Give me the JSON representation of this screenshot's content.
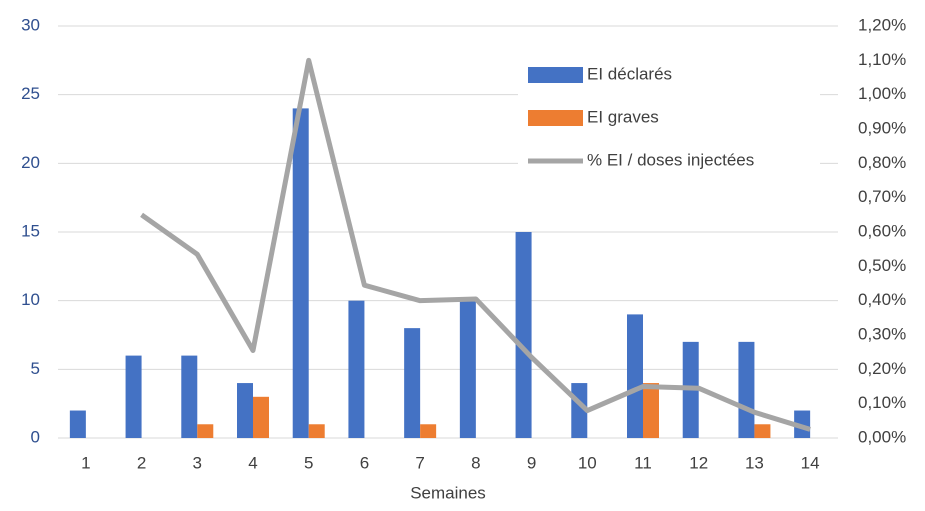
{
  "chart_data": {
    "type": "bar_line",
    "categories": [
      "1",
      "2",
      "3",
      "4",
      "5",
      "6",
      "7",
      "8",
      "9",
      "10",
      "11",
      "12",
      "13",
      "14"
    ],
    "x_label": "Semaines",
    "series": [
      {
        "name": "EI déclarés",
        "color": "#4472c4",
        "type": "bar",
        "values": [
          2,
          6,
          6,
          4,
          24,
          10,
          8,
          10,
          15,
          4,
          9,
          7,
          7,
          2
        ]
      },
      {
        "name": "EI graves",
        "color": "#ed7d31",
        "type": "bar",
        "values": [
          0,
          0,
          1,
          3,
          1,
          0,
          1,
          0,
          0,
          0,
          4,
          0,
          1,
          0
        ]
      },
      {
        "name": "% EI / doses injectées",
        "color": "#a5a5a5",
        "type": "line",
        "axis": "y2",
        "values": [
          null,
          0.65,
          0.535,
          0.255,
          1.1,
          0.445,
          0.4,
          0.405,
          0.235,
          0.08,
          0.15,
          0.145,
          0.075,
          0.025
        ]
      }
    ],
    "ylim": [
      0,
      30
    ],
    "yticks": [
      0,
      5,
      10,
      15,
      20,
      25,
      30
    ],
    "y2lim": [
      0,
      1.2
    ],
    "y2ticks": [
      {
        "value": 0,
        "label": "0,00%"
      },
      {
        "value": 0.1,
        "label": "0,10%"
      },
      {
        "value": 0.2,
        "label": "0,20%"
      },
      {
        "value": 0.3,
        "label": "0,30%"
      },
      {
        "value": 0.4,
        "label": "0,40%"
      },
      {
        "value": 0.5,
        "label": "0,50%"
      },
      {
        "value": 0.6,
        "label": "0,60%"
      },
      {
        "value": 0.7,
        "label": "0,70%"
      },
      {
        "value": 0.8,
        "label": "0,80%"
      },
      {
        "value": 0.9,
        "label": "0,90%"
      },
      {
        "value": 1.0,
        "label": "1,00%"
      },
      {
        "value": 1.1,
        "label": "1,10%"
      },
      {
        "value": 1.2,
        "label": "1,20%"
      }
    ],
    "grid": true,
    "legend": "upper right"
  }
}
